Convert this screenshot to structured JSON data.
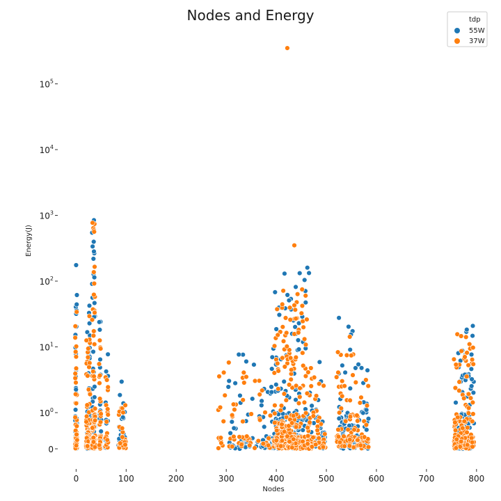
{
  "chart_data": {
    "type": "scatter",
    "title": "Nodes and Energy",
    "xlabel": "Nodes",
    "ylabel": "Energy(J)",
    "xlim": [
      -20,
      810
    ],
    "x_ticks": [
      0,
      100,
      200,
      300,
      400,
      500,
      600,
      700,
      800
    ],
    "yscale": "symlog",
    "y_ticks": [
      {
        "value": 0,
        "label": "0"
      },
      {
        "value": 1,
        "label": "10",
        "exp": "0"
      },
      {
        "value": 10,
        "label": "10",
        "exp": "1"
      },
      {
        "value": 100,
        "label": "10",
        "exp": "2"
      },
      {
        "value": 1000,
        "label": "10",
        "exp": "3"
      },
      {
        "value": 10000,
        "label": "10",
        "exp": "4"
      },
      {
        "value": 100000,
        "label": "10",
        "exp": "5"
      }
    ],
    "grid": false,
    "legend": {
      "title": "tdp",
      "placement": "top-right"
    },
    "series": [
      {
        "name": "55W",
        "color": "#1f77b4",
        "clusters": [
          {
            "x": [
              -2,
              2
            ],
            "y_min": 0,
            "y_max": 180,
            "n": 70
          },
          {
            "x": [
              22,
              28
            ],
            "y_min": 0,
            "y_max": 55,
            "n": 70
          },
          {
            "x": [
              32,
              38
            ],
            "y_min": 0,
            "y_max": 1200,
            "n": 120
          },
          {
            "x": [
              46,
              50
            ],
            "y_min": 0,
            "y_max": 32,
            "n": 50
          },
          {
            "x": [
              58,
              64
            ],
            "y_min": 0,
            "y_max": 9,
            "n": 25
          },
          {
            "x": [
              84,
              98
            ],
            "y_min": 0,
            "y_max": 3.2,
            "n": 35
          },
          {
            "x": [
              300,
              390
            ],
            "y_min": 0,
            "y_max": 9,
            "n": 60
          },
          {
            "x": [
              390,
              470
            ],
            "y_min": 0,
            "y_max": 160,
            "n": 320
          },
          {
            "x": [
              470,
              498
            ],
            "y_min": 0,
            "y_max": 6,
            "n": 50
          },
          {
            "x": [
              525,
              560
            ],
            "y_min": 0,
            "y_max": 30,
            "n": 90
          },
          {
            "x": [
              560,
              585
            ],
            "y_min": 0,
            "y_max": 6,
            "n": 40
          },
          {
            "x": [
              758,
              795
            ],
            "y_min": 0,
            "y_max": 22,
            "n": 160
          }
        ],
        "points": [
          [
            0,
            175
          ],
          [
            462,
            160
          ],
          [
            318,
            2.8
          ],
          [
            340,
            6
          ],
          [
            580,
            1.1
          ]
        ]
      },
      {
        "name": "37W",
        "color": "#ff7f0e",
        "clusters": [
          {
            "x": [
              -2,
              2
            ],
            "y_min": 0,
            "y_max": 90,
            "n": 60
          },
          {
            "x": [
              20,
              28
            ],
            "y_min": 0,
            "y_max": 30,
            "n": 80
          },
          {
            "x": [
              32,
              38
            ],
            "y_min": 0,
            "y_max": 800,
            "n": 140
          },
          {
            "x": [
              46,
              50
            ],
            "y_min": 0,
            "y_max": 16,
            "n": 50
          },
          {
            "x": [
              58,
              64
            ],
            "y_min": 0,
            "y_max": 4.5,
            "n": 20
          },
          {
            "x": [
              84,
              100
            ],
            "y_min": 0,
            "y_max": 1.3,
            "n": 30
          },
          {
            "x": [
              284,
              390
            ],
            "y_min": 0,
            "y_max": 6,
            "n": 60
          },
          {
            "x": [
              395,
              470
            ],
            "y_min": 0,
            "y_max": 75,
            "n": 360
          },
          {
            "x": [
              470,
              498
            ],
            "y_min": 0,
            "y_max": 3.5,
            "n": 45
          },
          {
            "x": [
              520,
              565
            ],
            "y_min": 0,
            "y_max": 15,
            "n": 80
          },
          {
            "x": [
              560,
              585
            ],
            "y_min": 0,
            "y_max": 3.5,
            "n": 30
          },
          {
            "x": [
              755,
              795
            ],
            "y_min": 0,
            "y_max": 17,
            "n": 180
          }
        ],
        "points": [
          [
            422,
            350000
          ],
          [
            436,
            350
          ],
          [
            288,
            1.2
          ],
          [
            340,
            3.5
          ]
        ]
      }
    ]
  }
}
